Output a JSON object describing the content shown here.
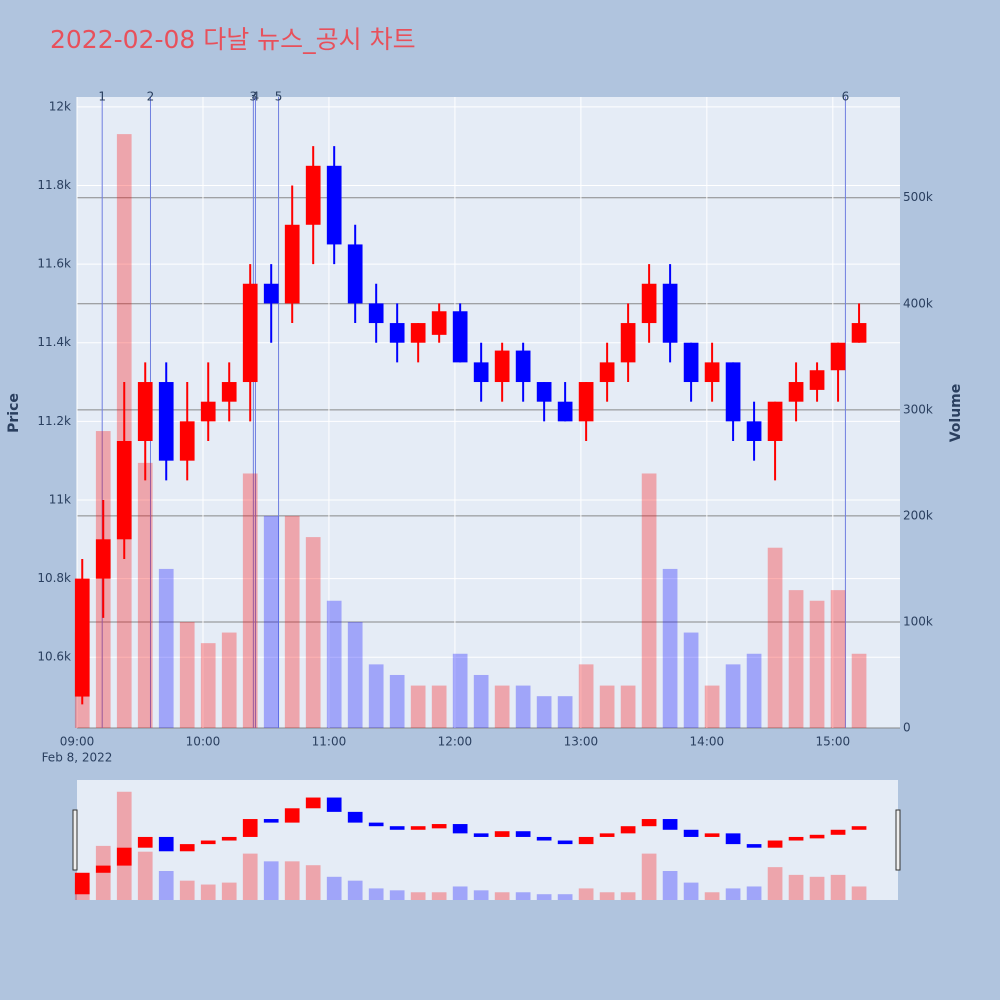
{
  "chart_data": {
    "type": "candlestick",
    "title": "2022-02-08 다날 뉴스_공시 차트",
    "y_title": "Price",
    "y2_title": "Volume",
    "x_date_label": "Feb 8, 2022",
    "x": [
      "09:00",
      "09:10",
      "09:20",
      "09:30",
      "09:40",
      "09:50",
      "10:00",
      "10:10",
      "10:20",
      "10:30",
      "10:40",
      "10:50",
      "11:00",
      "11:10",
      "11:20",
      "11:30",
      "11:40",
      "11:50",
      "12:00",
      "12:10",
      "12:20",
      "12:30",
      "12:40",
      "12:50",
      "13:00",
      "13:10",
      "13:20",
      "13:30",
      "13:40",
      "13:50",
      "14:00",
      "14:10",
      "14:20",
      "14:30",
      "14:40",
      "14:50",
      "15:00",
      "15:10"
    ],
    "open": [
      10500,
      10800,
      10900,
      11150,
      11300,
      11100,
      11200,
      11250,
      11300,
      11550,
      11500,
      11700,
      11850,
      11650,
      11500,
      11450,
      11400,
      11420,
      11480,
      11350,
      11300,
      11380,
      11300,
      11250,
      11200,
      11300,
      11350,
      11450,
      11550,
      11400,
      11300,
      11350,
      11200,
      11150,
      11250,
      11280,
      11330,
      11400
    ],
    "high": [
      10850,
      11000,
      11300,
      11350,
      11350,
      11300,
      11350,
      11350,
      11600,
      11600,
      11800,
      11900,
      11900,
      11700,
      11550,
      11500,
      11450,
      11500,
      11500,
      11400,
      11400,
      11400,
      11300,
      11300,
      11300,
      11400,
      11500,
      11600,
      11600,
      11400,
      11400,
      11350,
      11250,
      11250,
      11350,
      11350,
      11400,
      11500
    ],
    "low": [
      10480,
      10700,
      10850,
      11050,
      11050,
      11050,
      11150,
      11200,
      11200,
      11400,
      11450,
      11600,
      11600,
      11450,
      11400,
      11350,
      11350,
      11400,
      11350,
      11250,
      11250,
      11250,
      11200,
      11200,
      11150,
      11250,
      11300,
      11400,
      11350,
      11250,
      11250,
      11150,
      11100,
      11050,
      11200,
      11250,
      11250,
      11400
    ],
    "close": [
      10800,
      10900,
      11150,
      11300,
      11100,
      11200,
      11250,
      11300,
      11550,
      11500,
      11700,
      11850,
      11650,
      11500,
      11450,
      11400,
      11450,
      11480,
      11350,
      11300,
      11380,
      11300,
      11250,
      11200,
      11300,
      11350,
      11450,
      11550,
      11400,
      11300,
      11350,
      11200,
      11150,
      11250,
      11300,
      11330,
      11400,
      11450
    ],
    "volume": [
      90000,
      280000,
      560000,
      250000,
      150000,
      100000,
      80000,
      90000,
      240000,
      200000,
      200000,
      180000,
      120000,
      100000,
      60000,
      50000,
      40000,
      40000,
      70000,
      50000,
      40000,
      40000,
      30000,
      30000,
      60000,
      40000,
      40000,
      240000,
      150000,
      90000,
      40000,
      60000,
      70000,
      170000,
      130000,
      120000,
      130000,
      70000
    ],
    "increasing_color": "#ff0000",
    "decreasing_color": "#0000ff",
    "xlim": [
      "09:00",
      "15:32"
    ],
    "xticks": [
      "09:00",
      "10:00",
      "11:00",
      "12:00",
      "13:00",
      "14:00",
      "15:00"
    ],
    "ylim": [
      10420,
      12025
    ],
    "yticks": [
      {
        "value": 10600,
        "label": "10.6k"
      },
      {
        "value": 10800,
        "label": "10.8k"
      },
      {
        "value": 11000,
        "label": "11k"
      },
      {
        "value": 11200,
        "label": "11.2k"
      },
      {
        "value": 11400,
        "label": "11.4k"
      },
      {
        "value": 11600,
        "label": "11.6k"
      },
      {
        "value": 11800,
        "label": "11.8k"
      },
      {
        "value": 12000,
        "label": "12k"
      }
    ],
    "y2lim": [
      0,
      595000
    ],
    "y2ticks": [
      0,
      {
        "value": 100000,
        "label": "100k"
      },
      {
        "value": 200000,
        "label": "200k"
      },
      {
        "value": 300000,
        "label": "300k"
      },
      {
        "value": 400000,
        "label": "400k"
      },
      {
        "value": 500000,
        "label": "500k"
      }
    ],
    "events": [
      {
        "label": "1",
        "x": "09:12"
      },
      {
        "label": "2",
        "x": "09:35"
      },
      {
        "label": "3",
        "x": "10:24"
      },
      {
        "label": "4",
        "x": "10:25"
      },
      {
        "label": "5",
        "x": "10:36"
      },
      {
        "label": "6",
        "x": "15:06"
      }
    ]
  }
}
